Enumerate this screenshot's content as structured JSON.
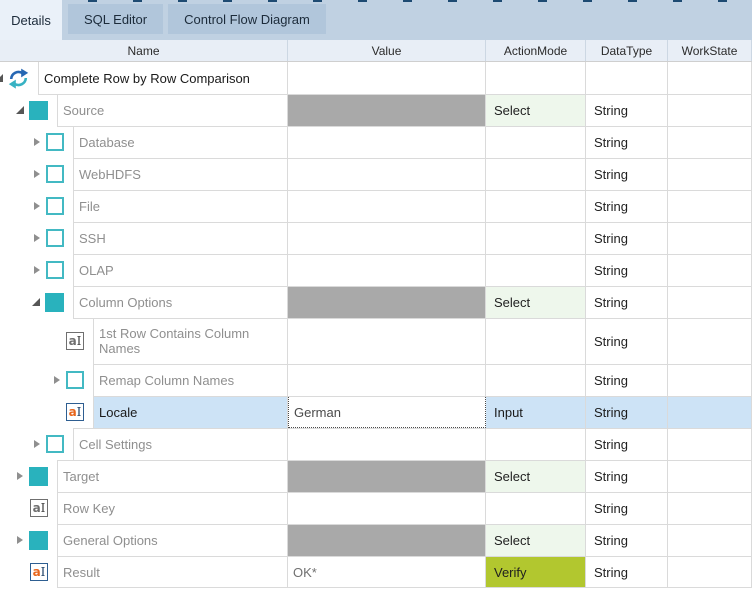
{
  "tabs": [
    {
      "label": "Details",
      "active": true
    },
    {
      "label": "SQL Editor",
      "active": false
    },
    {
      "label": "Control Flow Diagram",
      "active": false
    }
  ],
  "columns": [
    "Name",
    "Value",
    "ActionMode",
    "DataType",
    "WorkState"
  ],
  "colors": {
    "accent_teal": "#29b2bd",
    "selection_blue": "#cde3f6",
    "action_select_bg": "#eef7ec",
    "action_verify_bg": "#b2c72f",
    "value_disabled_bg": "#a9a9a9",
    "tab_strip_bg": "#c0d1e2",
    "active_tab_bg": "#eaf1f9",
    "inactive_tab_bg": "#b1c6db",
    "grid_line": "#dadada"
  },
  "rows": [
    {
      "name": "Complete Row by Row Comparison",
      "level": 0,
      "expander": "expanded",
      "icon": "refresh-icon",
      "name_emphasis": "dark",
      "value": "",
      "value_state": null,
      "action_mode": "",
      "action_state": null,
      "data_type": "",
      "work_state": "",
      "selected": false,
      "tall": false
    },
    {
      "name": "Source",
      "level": 1,
      "expander": "expanded",
      "icon": "module-folder-icon",
      "name_emphasis": null,
      "value": "",
      "value_state": "disabled",
      "action_mode": "Select",
      "action_state": "select",
      "data_type": "String",
      "work_state": "",
      "selected": false,
      "tall": false
    },
    {
      "name": "Database",
      "level": 2,
      "expander": "collapsed",
      "icon": "option-checkbox-icon",
      "name_emphasis": null,
      "value": "",
      "value_state": null,
      "action_mode": "",
      "action_state": null,
      "data_type": "String",
      "work_state": "",
      "selected": false,
      "tall": false
    },
    {
      "name": "WebHDFS",
      "level": 2,
      "expander": "collapsed",
      "icon": "option-checkbox-icon",
      "name_emphasis": null,
      "value": "",
      "value_state": null,
      "action_mode": "",
      "action_state": null,
      "data_type": "String",
      "work_state": "",
      "selected": false,
      "tall": false
    },
    {
      "name": "File",
      "level": 2,
      "expander": "collapsed",
      "icon": "option-checkbox-icon",
      "name_emphasis": null,
      "value": "",
      "value_state": null,
      "action_mode": "",
      "action_state": null,
      "data_type": "String",
      "work_state": "",
      "selected": false,
      "tall": false
    },
    {
      "name": "SSH",
      "level": 2,
      "expander": "collapsed",
      "icon": "option-checkbox-icon",
      "name_emphasis": null,
      "value": "",
      "value_state": null,
      "action_mode": "",
      "action_state": null,
      "data_type": "String",
      "work_state": "",
      "selected": false,
      "tall": false
    },
    {
      "name": "OLAP",
      "level": 2,
      "expander": "collapsed",
      "icon": "option-checkbox-icon",
      "name_emphasis": null,
      "value": "",
      "value_state": null,
      "action_mode": "",
      "action_state": null,
      "data_type": "String",
      "work_state": "",
      "selected": false,
      "tall": false
    },
    {
      "name": "Column Options",
      "level": 2,
      "expander": "expanded",
      "icon": "module-folder-icon",
      "name_emphasis": null,
      "value": "",
      "value_state": "disabled",
      "action_mode": "Select",
      "action_state": "select",
      "data_type": "String",
      "work_state": "",
      "selected": false,
      "tall": false
    },
    {
      "name": "1st Row Contains Column Names",
      "level": 3,
      "expander": null,
      "icon": "text-attribute-icon",
      "name_emphasis": null,
      "value": "",
      "value_state": null,
      "action_mode": "",
      "action_state": null,
      "data_type": "String",
      "work_state": "",
      "selected": false,
      "tall": true
    },
    {
      "name": "Remap Column Names",
      "level": 3,
      "expander": "collapsed",
      "icon": "option-checkbox-icon",
      "name_emphasis": null,
      "value": "",
      "value_state": null,
      "action_mode": "",
      "action_state": null,
      "data_type": "String",
      "work_state": "",
      "selected": false,
      "tall": false
    },
    {
      "name": "Locale",
      "level": 3,
      "expander": null,
      "icon": "text-attribute-active-icon",
      "name_emphasis": "dark",
      "value": "German",
      "value_state": "focused",
      "action_mode": "Input",
      "action_state": null,
      "data_type": "String",
      "work_state": "",
      "selected": true,
      "tall": false
    },
    {
      "name": "Cell Settings",
      "level": 2,
      "expander": "collapsed",
      "icon": "option-checkbox-icon",
      "name_emphasis": null,
      "value": "",
      "value_state": null,
      "action_mode": "",
      "action_state": null,
      "data_type": "String",
      "work_state": "",
      "selected": false,
      "tall": false
    },
    {
      "name": "Target",
      "level": 1,
      "expander": "collapsed",
      "icon": "module-folder-icon",
      "name_emphasis": null,
      "value": "",
      "value_state": "disabled",
      "action_mode": "Select",
      "action_state": "select",
      "data_type": "String",
      "work_state": "",
      "selected": false,
      "tall": false
    },
    {
      "name": "Row Key",
      "level": 1,
      "expander": null,
      "icon": "text-attribute-icon",
      "name_emphasis": null,
      "value": "",
      "value_state": null,
      "action_mode": "",
      "action_state": null,
      "data_type": "String",
      "work_state": "",
      "selected": false,
      "tall": false
    },
    {
      "name": "General Options",
      "level": 1,
      "expander": "collapsed",
      "icon": "module-folder-icon",
      "name_emphasis": null,
      "value": "",
      "value_state": "disabled",
      "action_mode": "Select",
      "action_state": "select",
      "data_type": "String",
      "work_state": "",
      "selected": false,
      "tall": false
    },
    {
      "name": "Result",
      "level": 1,
      "expander": null,
      "icon": "text-attribute-active-icon",
      "name_emphasis": null,
      "value": "OK*",
      "value_state": "plain",
      "action_mode": "Verify",
      "action_state": "verify",
      "data_type": "String",
      "work_state": "",
      "selected": false,
      "tall": false
    }
  ]
}
